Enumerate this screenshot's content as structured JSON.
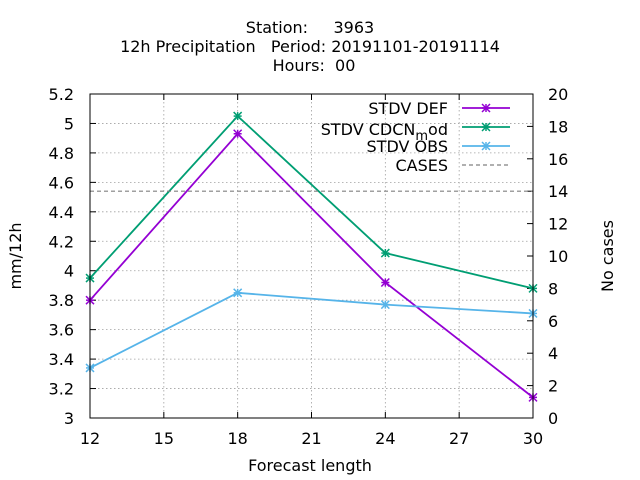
{
  "title": {
    "line1": "Station:     3963",
    "line2": "12h Precipitation   Period: 20191101-20191114",
    "line3": "Hours:  00"
  },
  "chart_data": {
    "type": "line",
    "xlabel": "Forecast length",
    "ylabel": "mm/12h",
    "y2label": "No cases",
    "x": [
      12,
      18,
      24,
      30
    ],
    "xlim": [
      12,
      30
    ],
    "xticks": [
      12,
      15,
      18,
      21,
      24,
      27,
      30
    ],
    "ylim": [
      3,
      5.2
    ],
    "yticks": [
      "3",
      "3.2",
      "3.4",
      "3.6",
      "3.8",
      "4",
      "4.2",
      "4.4",
      "4.6",
      "4.8",
      "5",
      "5.2"
    ],
    "y2lim": [
      0,
      20
    ],
    "y2ticks": [
      "0",
      "2",
      "4",
      "6",
      "8",
      "10",
      "12",
      "14",
      "16",
      "18",
      "20"
    ],
    "grid": true,
    "legend_position": "top-right",
    "series": [
      {
        "name": "STDV DEF",
        "values": [
          3.8,
          4.93,
          3.92,
          3.14
        ],
        "color": "#9400d3",
        "axis": "y"
      },
      {
        "name_main": "STDV CDCN",
        "name_sub": "m",
        "name_tail": "od",
        "values": [
          3.95,
          5.05,
          4.12,
          3.88
        ],
        "color": "#009e73",
        "axis": "y"
      },
      {
        "name": "STDV OBS",
        "values": [
          3.34,
          3.85,
          3.77,
          3.71
        ],
        "color": "#56b4e9",
        "axis": "y"
      },
      {
        "name": "CASES",
        "values": [
          14,
          14,
          14,
          14
        ],
        "color": "#808080",
        "axis": "y2",
        "style": "dashed"
      }
    ]
  }
}
